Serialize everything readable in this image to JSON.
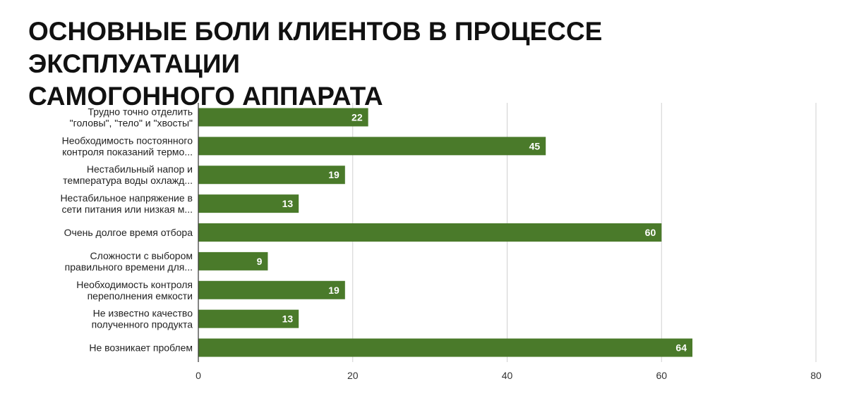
{
  "title_lines": [
    "ОСНОВНЫЕ БОЛИ КЛИЕНТОВ В ПРОЦЕССЕ ЭКСПЛУАТАЦИИ",
    "САМОГОННОГО АППАРАТА"
  ],
  "colors": {
    "bar": "#4a7a2a",
    "grid": "#d0d0d0",
    "text": "#222222"
  },
  "chart_data": {
    "type": "bar",
    "orientation": "horizontal",
    "title": "ОСНОВНЫЕ БОЛИ КЛИЕНТОВ В ПРОЦЕССЕ ЭКСПЛУАТАЦИИ САМОГОННОГО АППАРАТА",
    "categories": [
      [
        "Трудно точно отделить",
        "\"головы\", \"тело\" и \"хвосты\""
      ],
      [
        "Необходимость постоянного",
        "контроля показаний термо..."
      ],
      [
        "Нестабильный напор и",
        "температура воды охлажд..."
      ],
      [
        "Нестабильное напряжение в",
        "сети питания или низкая м..."
      ],
      [
        "Очень долгое время отбора"
      ],
      [
        "Сложности с выбором",
        "правильного времени для..."
      ],
      [
        "Необходимость контроля",
        "переполнения емкости"
      ],
      [
        "Не известно качество",
        "полученного продукта"
      ],
      [
        "Не возникает проблем"
      ]
    ],
    "values": [
      22,
      45,
      19,
      13,
      60,
      9,
      19,
      13,
      64
    ],
    "xlim": [
      0,
      80
    ],
    "xticks": [
      0,
      20,
      40,
      60,
      80
    ],
    "xlabel": "",
    "ylabel": "",
    "grid": true,
    "data_labels": true,
    "legend": "none"
  }
}
